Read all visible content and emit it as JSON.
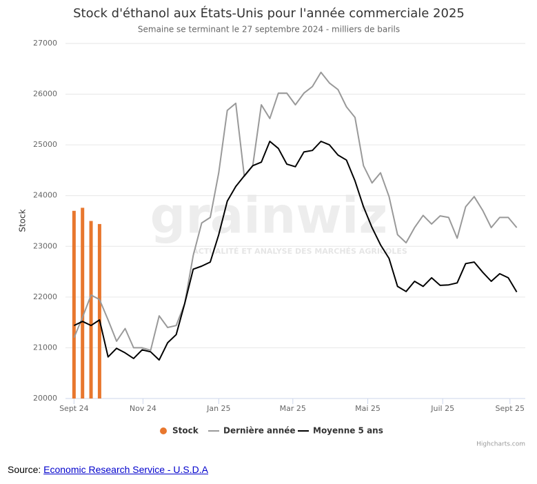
{
  "chart_data": {
    "type": "line",
    "title": "Stock d'éthanol aux États-Unis pour l'année commerciale 2025",
    "subtitle": "Semaine se terminant le 27 septembre 2024 - milliers de barils",
    "y_label": "Stock",
    "watermark": {
      "logo": "grainwiz",
      "tagline": "ACTUALITÉ ET ANALYSE DES MARCHÉS AGRICOLES"
    },
    "xlim": [
      -1,
      53
    ],
    "xticks": [
      {
        "value": 0,
        "label": "Sept 24"
      },
      {
        "value": 8.1,
        "label": "Nov 24"
      },
      {
        "value": 17,
        "label": "Jan 25"
      },
      {
        "value": 25.7,
        "label": "Mar 25"
      },
      {
        "value": 34.5,
        "label": "Mai 25"
      },
      {
        "value": 43.3,
        "label": "Juil 25"
      },
      {
        "value": 51.2,
        "label": "Sept 25"
      }
    ],
    "ylim": [
      20000,
      27000
    ],
    "yticks": [
      20000,
      21000,
      22000,
      23000,
      24000,
      25000,
      26000,
      27000
    ],
    "grid": true,
    "legend": "bottom",
    "series": [
      {
        "name": "Stock",
        "type": "column",
        "color": "#e8772e",
        "x": [
          0,
          1,
          2,
          3
        ],
        "values": [
          23700,
          23760,
          23500,
          23440
        ]
      },
      {
        "name": "Dernière année",
        "type": "line",
        "color": "#999999",
        "x": [
          0,
          1,
          2,
          3,
          4,
          5,
          6,
          7,
          8,
          9,
          10,
          11,
          12,
          13,
          14,
          15,
          16,
          17,
          18,
          19,
          20,
          21,
          22,
          23,
          24,
          25,
          26,
          27,
          28,
          29,
          30,
          31,
          32,
          33,
          34,
          35,
          36,
          37,
          38,
          39,
          40,
          41,
          42,
          43,
          44,
          45,
          46,
          47,
          48,
          49,
          50,
          51,
          52
        ],
        "values": [
          21200,
          21600,
          22040,
          21950,
          21550,
          21130,
          21380,
          21000,
          21000,
          20950,
          21630,
          21400,
          21440,
          21870,
          22820,
          23460,
          23570,
          24450,
          25680,
          25820,
          24380,
          24590,
          25790,
          25520,
          26020,
          26020,
          25790,
          26020,
          26150,
          26430,
          26220,
          26090,
          25750,
          25540,
          24590,
          24250,
          24450,
          23980,
          23230,
          23070,
          23370,
          23610,
          23440,
          23600,
          23570,
          23160,
          23780,
          23980,
          23710,
          23370,
          23570,
          23570,
          23370
        ]
      },
      {
        "name": "Moyenne 5 ans",
        "type": "line",
        "color": "#000000",
        "x": [
          0,
          1,
          2,
          3,
          4,
          5,
          6,
          7,
          8,
          9,
          10,
          11,
          12,
          13,
          14,
          15,
          16,
          17,
          18,
          19,
          20,
          21,
          22,
          23,
          24,
          25,
          26,
          27,
          28,
          29,
          30,
          31,
          32,
          33,
          34,
          35,
          36,
          37,
          38,
          39,
          40,
          41,
          42,
          43,
          44,
          45,
          46,
          47,
          48,
          49,
          50,
          51,
          52
        ],
        "values": [
          21440,
          21520,
          21440,
          21550,
          20820,
          20990,
          20900,
          20790,
          20960,
          20920,
          20760,
          21100,
          21260,
          21870,
          22550,
          22610,
          22690,
          23230,
          23890,
          24180,
          24390,
          24590,
          24660,
          25070,
          24930,
          24620,
          24570,
          24860,
          24890,
          25070,
          25000,
          24800,
          24700,
          24290,
          23780,
          23370,
          23030,
          22760,
          22210,
          22110,
          22310,
          22210,
          22380,
          22230,
          22240,
          22280,
          22660,
          22690,
          22490,
          22310,
          22460,
          22380,
          22100
        ]
      }
    ]
  },
  "credits": "Highcharts.com",
  "source": {
    "label": "Source:",
    "link": "Economic Research Service - U.S.D.A"
  }
}
